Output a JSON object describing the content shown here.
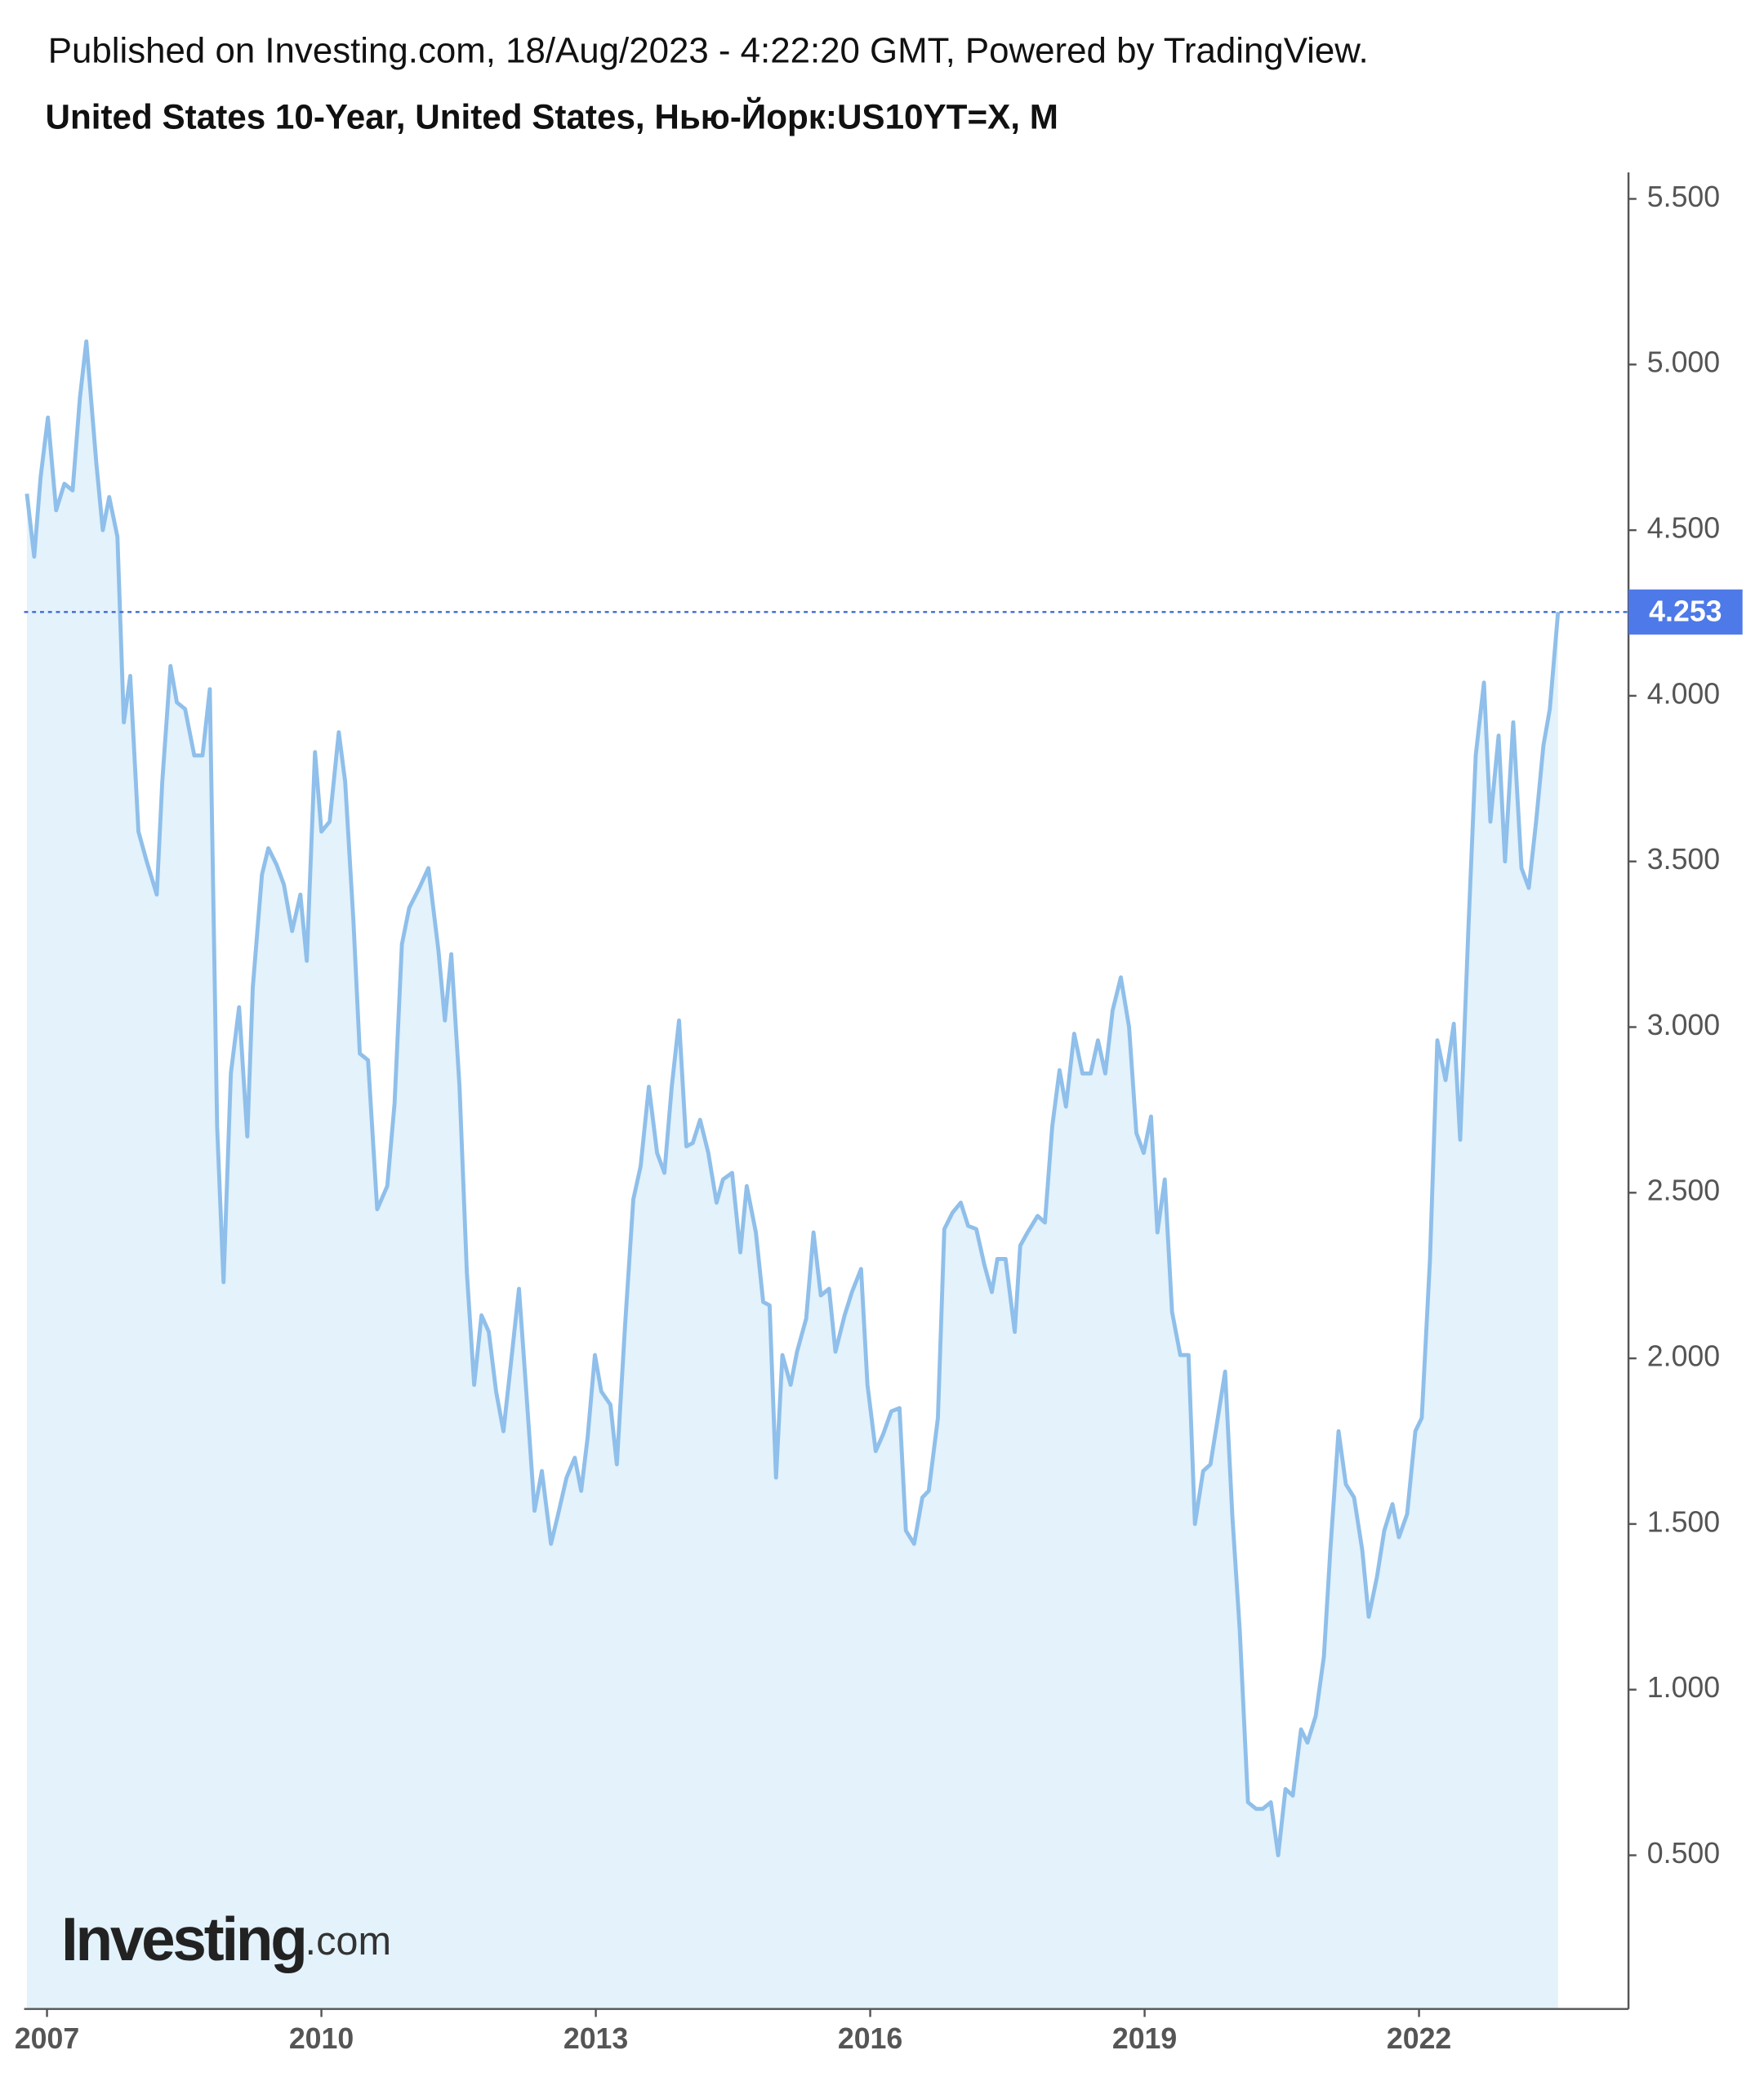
{
  "header": {
    "published": "Published on Investing.com, 18/Aug/2023 - 4:22:20 GMT, Powered by TradingView."
  },
  "logo": {
    "brand": "Investing",
    "suffix": ".com"
  },
  "chart_data": {
    "type": "line",
    "title": "United States 10-Year, United States, Нью-Йорк:US10YT=X, M",
    "color": "#8fbfea",
    "area_color": "#e3f2fb",
    "x": [
      2006.78,
      2006.86,
      2006.93,
      2007.01,
      2007.1,
      2007.19,
      2007.28,
      2007.36,
      2007.43,
      2007.54,
      2007.61,
      2007.68,
      2007.77,
      2007.84,
      2007.91,
      2008.0,
      2008.09,
      2008.2,
      2008.26,
      2008.35,
      2008.42,
      2008.51,
      2008.61,
      2008.7,
      2008.78,
      2008.86,
      2008.93,
      2009.01,
      2009.1,
      2009.19,
      2009.25,
      2009.35,
      2009.42,
      2009.51,
      2009.59,
      2009.68,
      2009.77,
      2009.84,
      2009.93,
      2010.0,
      2010.09,
      2010.19,
      2010.26,
      2010.35,
      2010.42,
      2010.51,
      2010.61,
      2010.72,
      2010.8,
      2010.88,
      2010.96,
      2011.07,
      2011.17,
      2011.28,
      2011.35,
      2011.42,
      2011.51,
      2011.59,
      2011.67,
      2011.75,
      2011.83,
      2011.91,
      2011.99,
      2012.07,
      2012.16,
      2012.25,
      2012.33,
      2012.41,
      2012.51,
      2012.58,
      2012.68,
      2012.77,
      2012.84,
      2012.91,
      2012.99,
      2013.06,
      2013.16,
      2013.23,
      2013.32,
      2013.41,
      2013.49,
      2013.58,
      2013.67,
      2013.75,
      2013.83,
      2013.91,
      2013.99,
      2014.06,
      2014.14,
      2014.23,
      2014.32,
      2014.39,
      2014.49,
      2014.58,
      2014.65,
      2014.75,
      2014.83,
      2014.9,
      2014.97,
      2015.04,
      2015.13,
      2015.2,
      2015.3,
      2015.38,
      2015.46,
      2015.55,
      2015.62,
      2015.72,
      2015.8,
      2015.9,
      2015.97,
      2016.06,
      2016.14,
      2016.23,
      2016.32,
      2016.39,
      2016.48,
      2016.57,
      2016.64,
      2016.74,
      2016.81,
      2016.9,
      2016.99,
      2017.07,
      2017.16,
      2017.25,
      2017.33,
      2017.39,
      2017.48,
      2017.58,
      2017.64,
      2017.72,
      2017.83,
      2017.91,
      2017.99,
      2018.07,
      2018.14,
      2018.23,
      2018.32,
      2018.41,
      2018.49,
      2018.57,
      2018.65,
      2018.74,
      2018.83,
      2018.91,
      2018.99,
      2019.07,
      2019.14,
      2019.22,
      2019.3,
      2019.39,
      2019.48,
      2019.55,
      2019.64,
      2019.72,
      2019.8,
      2019.88,
      2019.96,
      2020.04,
      2020.13,
      2020.22,
      2020.29,
      2020.38,
      2020.46,
      2020.54,
      2020.62,
      2020.71,
      2020.78,
      2020.87,
      2020.96,
      2021.03,
      2021.12,
      2021.2,
      2021.29,
      2021.38,
      2021.45,
      2021.54,
      2021.62,
      2021.71,
      2021.78,
      2021.87,
      2021.96,
      2022.03,
      2022.12,
      2022.2,
      2022.29,
      2022.38,
      2022.45,
      2022.54,
      2022.62,
      2022.71,
      2022.78,
      2022.87,
      2022.94,
      2023.03,
      2023.12,
      2023.2,
      2023.28,
      2023.36,
      2023.43,
      2023.52
    ],
    "values": [
      4.61,
      4.42,
      4.66,
      4.84,
      4.56,
      4.64,
      4.62,
      4.9,
      5.07,
      4.7,
      4.5,
      4.6,
      4.48,
      3.92,
      4.06,
      3.59,
      3.5,
      3.4,
      3.74,
      4.09,
      3.98,
      3.96,
      3.82,
      3.82,
      4.02,
      2.7,
      2.23,
      2.86,
      3.06,
      2.67,
      3.12,
      3.46,
      3.54,
      3.49,
      3.43,
      3.29,
      3.4,
      3.2,
      3.83,
      3.59,
      3.62,
      3.89,
      3.74,
      3.32,
      2.92,
      2.9,
      2.45,
      2.52,
      2.77,
      3.25,
      3.36,
      3.42,
      3.48,
      3.23,
      3.02,
      3.22,
      2.82,
      2.26,
      1.92,
      2.13,
      2.08,
      1.9,
      1.78,
      1.98,
      2.21,
      1.86,
      1.54,
      1.66,
      1.44,
      1.52,
      1.64,
      1.7,
      1.6,
      1.76,
      2.01,
      1.9,
      1.86,
      1.68,
      2.1,
      2.48,
      2.58,
      2.82,
      2.62,
      2.56,
      2.82,
      3.02,
      2.64,
      2.65,
      2.72,
      2.62,
      2.47,
      2.54,
      2.56,
      2.32,
      2.52,
      2.38,
      2.17,
      2.16,
      1.64,
      2.01,
      1.92,
      2.02,
      2.12,
      2.38,
      2.19,
      2.21,
      2.02,
      2.13,
      2.2,
      2.27,
      1.92,
      1.72,
      1.77,
      1.84,
      1.85,
      1.48,
      1.44,
      1.58,
      1.6,
      1.82,
      2.39,
      2.44,
      2.47,
      2.4,
      2.39,
      2.28,
      2.2,
      2.3,
      2.3,
      2.08,
      2.34,
      2.38,
      2.43,
      2.41,
      2.7,
      2.87,
      2.76,
      2.98,
      2.86,
      2.86,
      2.96,
      2.86,
      3.05,
      3.15,
      3.0,
      2.68,
      2.62,
      2.73,
      2.38,
      2.54,
      2.14,
      2.01,
      2.01,
      1.5,
      1.66,
      1.68,
      1.82,
      1.96,
      1.52,
      1.18,
      0.66,
      0.64,
      0.64,
      0.66,
      0.5,
      0.7,
      0.68,
      0.88,
      0.84,
      0.92,
      1.1,
      1.42,
      1.78,
      1.62,
      1.58,
      1.42,
      1.22,
      1.34,
      1.48,
      1.56,
      1.46,
      1.53,
      1.78,
      1.82,
      2.3,
      2.96,
      2.84,
      3.01,
      2.66,
      3.3,
      3.82,
      4.04,
      3.62,
      3.88,
      3.5,
      3.92,
      3.48,
      3.42,
      3.62,
      3.85,
      3.96,
      4.253
    ],
    "xlim": [
      2006.75,
      2024.29
    ],
    "xticks": [
      2007,
      2010,
      2013,
      2016,
      2019,
      2022
    ],
    "ylim": [
      0.036,
      5.58
    ],
    "yticks": [
      {
        "value": 0.5,
        "label": "0.500"
      },
      {
        "value": 1,
        "label": "1.000"
      },
      {
        "value": 1.5,
        "label": "1.500"
      },
      {
        "value": 2,
        "label": "2.000"
      },
      {
        "value": 2.5,
        "label": "2.500"
      },
      {
        "value": 3,
        "label": "3.000"
      },
      {
        "value": 3.5,
        "label": "3.500"
      },
      {
        "value": 4,
        "label": "4.000"
      },
      {
        "value": 4.5,
        "label": "4.500"
      },
      {
        "value": 5,
        "label": "5.000"
      },
      {
        "value": 5.5,
        "label": "5.500"
      }
    ],
    "last_value_marker": true
  }
}
